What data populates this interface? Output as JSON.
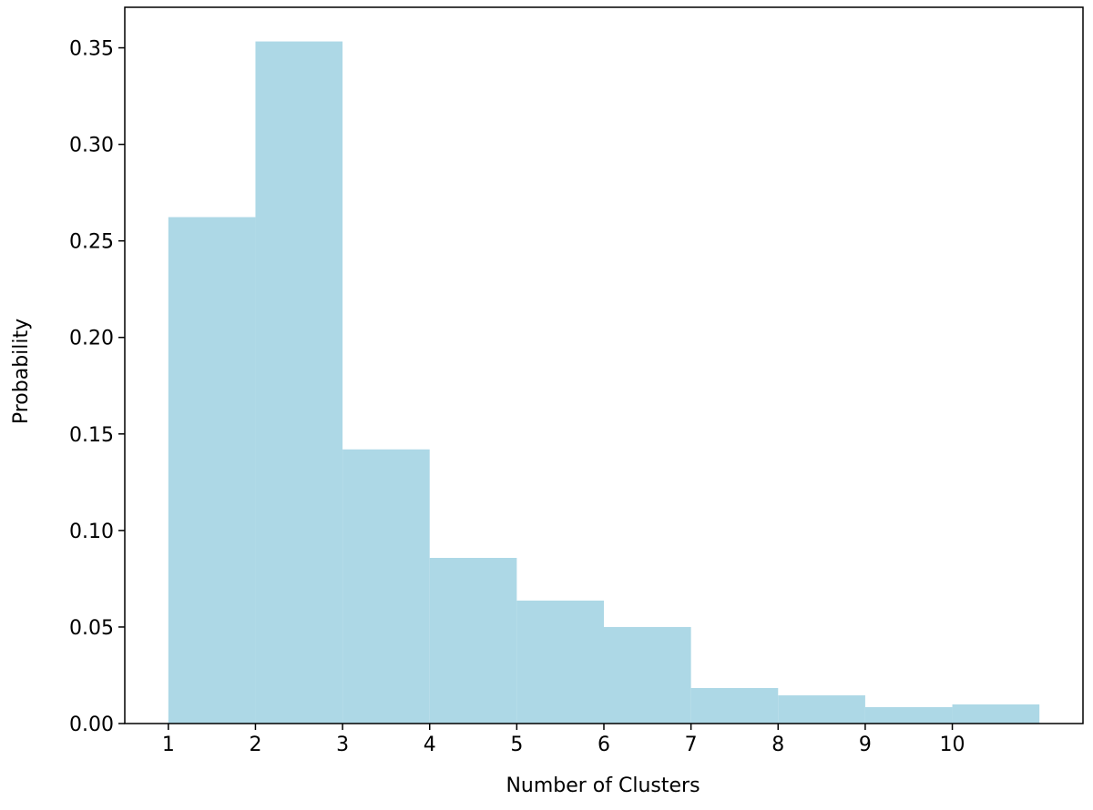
{
  "chart_data": {
    "type": "histogram",
    "x_label": "Number of Clusters",
    "y_label": "Probability",
    "bins": [
      1,
      2,
      3,
      4,
      5,
      6,
      7,
      8,
      9,
      10,
      11
    ],
    "values": [
      0.2623,
      0.3533,
      0.142,
      0.0858,
      0.0637,
      0.05,
      0.0184,
      0.0146,
      0.0085,
      0.0099
    ],
    "color": "#add8e6",
    "xlim": [
      0.5,
      11.5
    ],
    "xticks": [
      1,
      2,
      3,
      4,
      5,
      6,
      7,
      8,
      9,
      10
    ],
    "ylim": [
      0,
      0.371
    ],
    "yticks": [
      {
        "value": 0,
        "label": "0.00"
      },
      {
        "value": 0.05,
        "label": "0.05"
      },
      {
        "value": 0.1,
        "label": "0.10"
      },
      {
        "value": 0.15,
        "label": "0.15"
      },
      {
        "value": 0.2,
        "label": "0.20"
      },
      {
        "value": 0.25,
        "label": "0.25"
      },
      {
        "value": 0.3,
        "label": "0.30"
      },
      {
        "value": 0.35,
        "label": "0.35"
      }
    ],
    "grid": false
  }
}
